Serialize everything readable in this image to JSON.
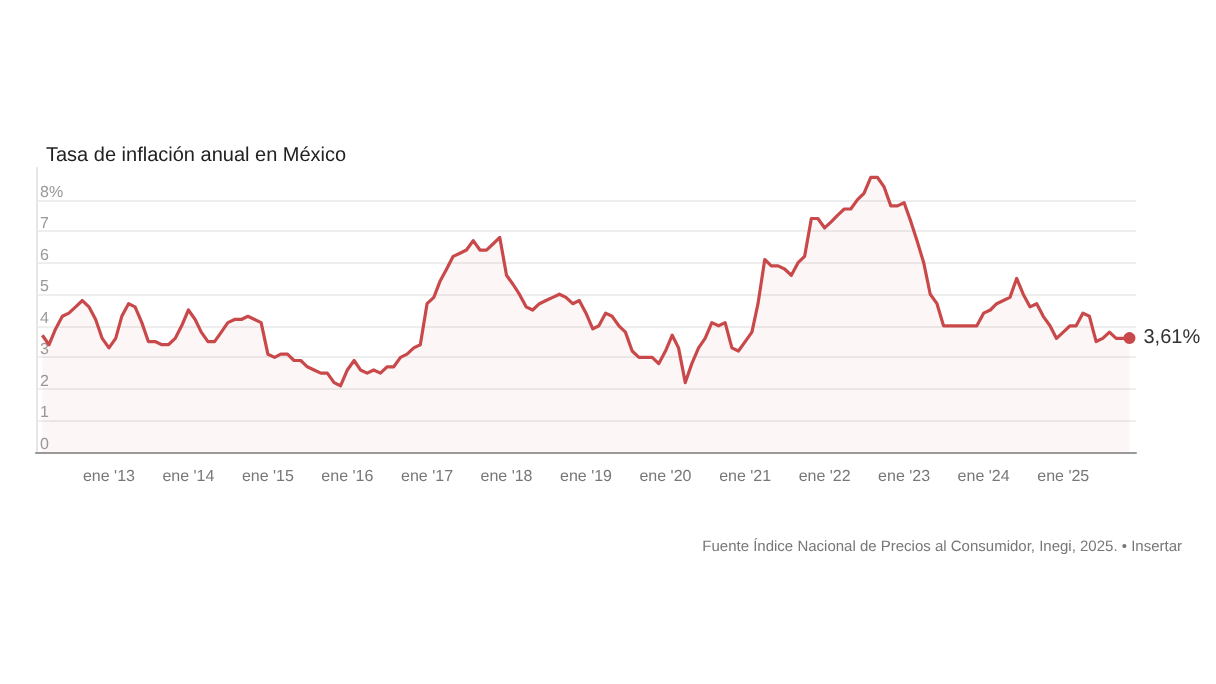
{
  "chart_data": {
    "type": "area",
    "title": "Tasa de inflación anual en México",
    "x": [
      "2012-03",
      "2012-04",
      "2012-05",
      "2012-06",
      "2012-07",
      "2012-08",
      "2012-09",
      "2012-10",
      "2012-11",
      "2012-12",
      "2013-01",
      "2013-02",
      "2013-03",
      "2013-04",
      "2013-05",
      "2013-06",
      "2013-07",
      "2013-08",
      "2013-09",
      "2013-10",
      "2013-11",
      "2013-12",
      "2014-01",
      "2014-02",
      "2014-03",
      "2014-04",
      "2014-05",
      "2014-06",
      "2014-07",
      "2014-08",
      "2014-09",
      "2014-10",
      "2014-11",
      "2014-12",
      "2015-01",
      "2015-02",
      "2015-03",
      "2015-04",
      "2015-05",
      "2015-06",
      "2015-07",
      "2015-08",
      "2015-09",
      "2015-10",
      "2015-11",
      "2015-12",
      "2016-01",
      "2016-02",
      "2016-03",
      "2016-04",
      "2016-05",
      "2016-06",
      "2016-07",
      "2016-08",
      "2016-09",
      "2016-10",
      "2016-11",
      "2016-12",
      "2017-01",
      "2017-02",
      "2017-03",
      "2017-04",
      "2017-05",
      "2017-06",
      "2017-07",
      "2017-08",
      "2017-09",
      "2017-10",
      "2017-11",
      "2017-12",
      "2018-01",
      "2018-02",
      "2018-03",
      "2018-04",
      "2018-05",
      "2018-06",
      "2018-07",
      "2018-08",
      "2018-09",
      "2018-10",
      "2018-11",
      "2018-12",
      "2019-01",
      "2019-02",
      "2019-03",
      "2019-04",
      "2019-05",
      "2019-06",
      "2019-07",
      "2019-08",
      "2019-09",
      "2019-10",
      "2019-11",
      "2019-12",
      "2020-01",
      "2020-02",
      "2020-03",
      "2020-04",
      "2020-05",
      "2020-06",
      "2020-07",
      "2020-08",
      "2020-09",
      "2020-10",
      "2020-11",
      "2020-12",
      "2021-01",
      "2021-02",
      "2021-03",
      "2021-04",
      "2021-05",
      "2021-06",
      "2021-07",
      "2021-08",
      "2021-09",
      "2021-10",
      "2021-11",
      "2021-12",
      "2022-01",
      "2022-02",
      "2022-03",
      "2022-04",
      "2022-05",
      "2022-06",
      "2022-07",
      "2022-08",
      "2022-09",
      "2022-10",
      "2022-11",
      "2022-12",
      "2023-01",
      "2023-02",
      "2023-03",
      "2023-04",
      "2023-05",
      "2023-06",
      "2023-07",
      "2023-08",
      "2023-09",
      "2023-10",
      "2023-11",
      "2023-12",
      "2024-01",
      "2024-02",
      "2024-03",
      "2024-04",
      "2024-05",
      "2024-06",
      "2024-07",
      "2024-08",
      "2024-09",
      "2024-10",
      "2024-11",
      "2024-12",
      "2025-01",
      "2025-02",
      "2025-03",
      "2025-04",
      "2025-05",
      "2025-06",
      "2025-07",
      "2025-08",
      "2025-09",
      "2025-10",
      "2025-11"
    ],
    "series": [
      {
        "color": "#c9494b",
        "values": [
          3.7,
          3.4,
          3.9,
          4.3,
          4.4,
          4.6,
          4.8,
          4.6,
          4.2,
          3.6,
          3.3,
          3.6,
          4.3,
          4.7,
          4.6,
          4.1,
          3.5,
          3.5,
          3.4,
          3.4,
          3.6,
          4.0,
          4.5,
          4.2,
          3.8,
          3.5,
          3.5,
          3.8,
          4.1,
          4.2,
          4.2,
          4.3,
          4.2,
          4.1,
          3.1,
          3.0,
          3.1,
          3.1,
          2.9,
          2.9,
          2.7,
          2.6,
          2.5,
          2.5,
          2.2,
          2.1,
          2.6,
          2.9,
          2.6,
          2.5,
          2.6,
          2.5,
          2.7,
          2.7,
          3.0,
          3.1,
          3.3,
          3.4,
          4.7,
          4.9,
          5.4,
          5.8,
          6.2,
          6.3,
          6.4,
          6.7,
          6.4,
          6.4,
          6.6,
          6.8,
          5.6,
          5.3,
          5.0,
          4.6,
          4.5,
          4.7,
          4.8,
          4.9,
          5.0,
          4.9,
          4.7,
          4.8,
          4.4,
          3.9,
          4.0,
          4.4,
          4.3,
          4.0,
          3.8,
          3.2,
          3.0,
          3.0,
          3.0,
          2.8,
          3.2,
          3.7,
          3.3,
          2.2,
          2.8,
          3.3,
          3.6,
          4.1,
          4.0,
          4.1,
          3.3,
          3.2,
          3.5,
          3.8,
          4.7,
          6.1,
          5.9,
          5.9,
          5.8,
          5.6,
          6.0,
          6.2,
          7.4,
          7.4,
          7.1,
          7.3,
          7.5,
          7.7,
          7.7,
          8.0,
          8.2,
          8.7,
          8.7,
          8.4,
          7.8,
          7.8,
          7.9,
          7.3,
          6.7,
          6.0,
          5.0,
          4.7,
          4.0,
          4.0,
          4.0,
          4.0,
          4.0,
          4.0,
          4.4,
          4.5,
          4.7,
          4.8,
          4.9,
          5.5,
          5.0,
          4.6,
          4.7,
          4.3,
          4.0,
          3.6,
          3.8,
          4.0,
          4.0,
          4.4,
          4.3,
          3.5,
          3.6,
          3.8,
          3.6,
          3.6,
          3.61
        ]
      }
    ],
    "xlim": [
      "2012-02",
      "2025-12"
    ],
    "xticks": [
      {
        "value": "2013-01",
        "label": "ene '13"
      },
      {
        "value": "2014-01",
        "label": "ene '14"
      },
      {
        "value": "2015-01",
        "label": "ene '15"
      },
      {
        "value": "2016-01",
        "label": "ene '16"
      },
      {
        "value": "2017-01",
        "label": "ene '17"
      },
      {
        "value": "2018-01",
        "label": "ene '18"
      },
      {
        "value": "2019-01",
        "label": "ene '19"
      },
      {
        "value": "2020-01",
        "label": "ene '20"
      },
      {
        "value": "2021-01",
        "label": "ene '21"
      },
      {
        "value": "2022-01",
        "label": "ene '22"
      },
      {
        "value": "2023-01",
        "label": "ene '23"
      },
      {
        "value": "2024-01",
        "label": "ene '24"
      },
      {
        "value": "2025-01",
        "label": "ene '25"
      }
    ],
    "ylim": [
      0,
      9
    ],
    "yticks": [
      0,
      1,
      2,
      3,
      4,
      5,
      6,
      7,
      {
        "value": 8,
        "label": "8%"
      }
    ],
    "grid": "y",
    "annotations": [
      {
        "text": "3,61%",
        "x": "2025-11",
        "y": 3.61
      },
      "Fuente Índice Nacional de Precios al Consumidor, Inegi, 2025. • Insertar"
    ]
  }
}
